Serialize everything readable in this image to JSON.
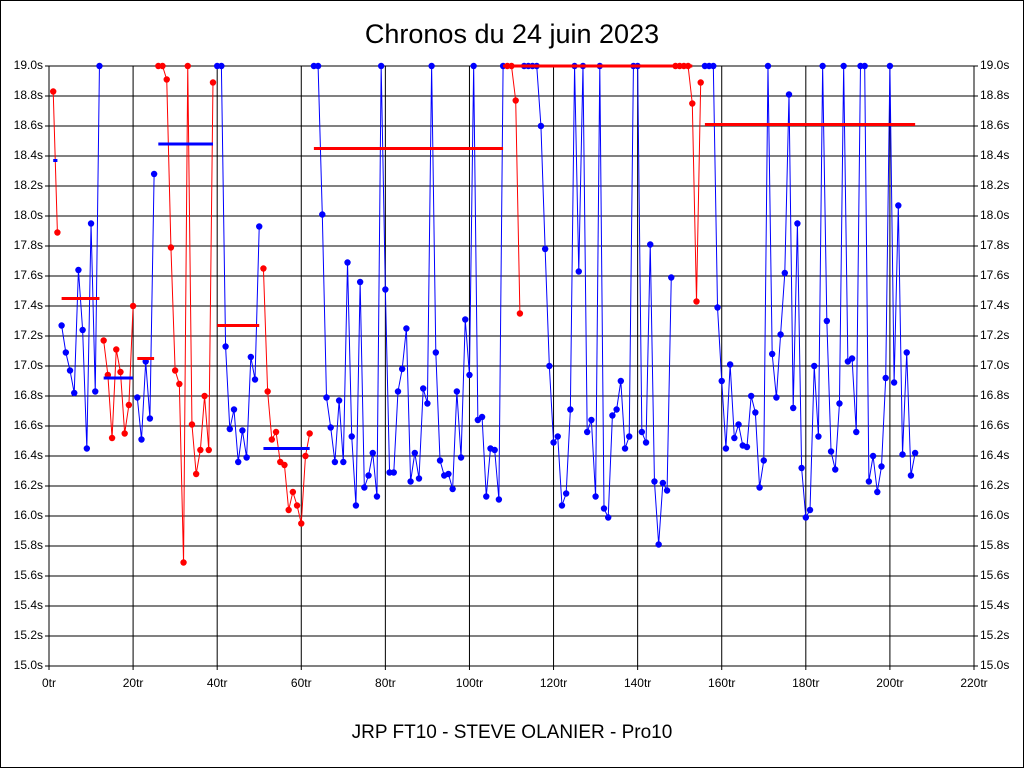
{
  "chart_data": {
    "type": "line",
    "title": "Chronos du 24 juin 2023",
    "subtitle": "JRP FT10 - STEVE OLANIER - Pro10",
    "xlim": [
      0,
      220
    ],
    "xticks": [
      {
        "value": 0,
        "label": "0tr"
      },
      {
        "value": 20,
        "label": "20tr"
      },
      {
        "value": 40,
        "label": "40tr"
      },
      {
        "value": 60,
        "label": "60tr"
      },
      {
        "value": 80,
        "label": "80tr"
      },
      {
        "value": 100,
        "label": "100tr"
      },
      {
        "value": 120,
        "label": "120tr"
      },
      {
        "value": 140,
        "label": "140tr"
      },
      {
        "value": 160,
        "label": "160tr"
      },
      {
        "value": 180,
        "label": "180tr"
      },
      {
        "value": 200,
        "label": "200tr"
      },
      {
        "value": 220,
        "label": "220tr"
      }
    ],
    "ylim": [
      15,
      19
    ],
    "yticks": [
      {
        "value": 15,
        "label": "15.0s"
      },
      {
        "value": 15.2,
        "label": "15.2s"
      },
      {
        "value": 15.4,
        "label": "15.4s"
      },
      {
        "value": 15.6,
        "label": "15.6s"
      },
      {
        "value": 15.8,
        "label": "15.8s"
      },
      {
        "value": 16,
        "label": "16.0s"
      },
      {
        "value": 16.2,
        "label": "16.2s"
      },
      {
        "value": 16.4,
        "label": "16.4s"
      },
      {
        "value": 16.6,
        "label": "16.6s"
      },
      {
        "value": 16.8,
        "label": "16.8s"
      },
      {
        "value": 17,
        "label": "17.0s"
      },
      {
        "value": 17.2,
        "label": "17.2s"
      },
      {
        "value": 17.4,
        "label": "17.4s"
      },
      {
        "value": 17.6,
        "label": "17.6s"
      },
      {
        "value": 17.8,
        "label": "17.8s"
      },
      {
        "value": 18,
        "label": "18.0s"
      },
      {
        "value": 18.2,
        "label": "18.2s"
      },
      {
        "value": 18.4,
        "label": "18.4s"
      },
      {
        "value": 18.6,
        "label": "18.6s"
      },
      {
        "value": 18.8,
        "label": "18.8s"
      },
      {
        "value": 19,
        "label": "19.0s"
      }
    ],
    "grid": true,
    "series": [
      {
        "color": "#ff0000",
        "x": [
          1,
          2
        ],
        "values": [
          18.83,
          17.89
        ]
      },
      {
        "color": "#0000ff",
        "x": [
          3,
          4,
          5,
          6,
          7,
          8,
          9,
          10,
          11,
          12
        ],
        "values": [
          17.27,
          17.09,
          16.97,
          16.82,
          17.64,
          17.24,
          16.45,
          17.95,
          16.83,
          19
        ]
      },
      {
        "color": "#ff0000",
        "x": [
          13,
          14,
          15,
          16,
          17,
          18,
          19,
          20
        ],
        "values": [
          17.17,
          16.94,
          16.52,
          17.11,
          16.96,
          16.55,
          16.74,
          17.4
        ]
      },
      {
        "color": "#0000ff",
        "x": [
          21,
          22,
          23,
          24,
          25
        ],
        "values": [
          16.79,
          16.51,
          17.03,
          16.65,
          18.28
        ]
      },
      {
        "color": "#ff0000",
        "x": [
          26,
          27,
          28,
          29,
          30,
          31,
          32,
          33,
          34,
          35,
          36,
          37,
          38,
          39
        ],
        "values": [
          19,
          19,
          18.91,
          17.79,
          16.97,
          16.88,
          15.69,
          19,
          16.61,
          16.28,
          16.44,
          16.8,
          16.44,
          18.89
        ]
      },
      {
        "color": "#0000ff",
        "x": [
          40,
          41,
          42,
          43,
          44,
          45,
          46,
          47,
          48,
          49,
          50
        ],
        "values": [
          19,
          19,
          17.13,
          16.58,
          16.71,
          16.36,
          16.57,
          16.39,
          17.06,
          16.91,
          17.93
        ]
      },
      {
        "color": "#ff0000",
        "x": [
          51,
          52,
          53,
          54,
          55,
          56,
          57,
          58,
          59,
          60,
          61,
          62
        ],
        "values": [
          17.65,
          16.83,
          16.51,
          16.56,
          16.36,
          16.34,
          16.04,
          16.16,
          16.07,
          15.95,
          16.4,
          16.55
        ]
      },
      {
        "color": "#0000ff",
        "x": [
          63,
          64,
          65,
          66,
          67,
          68,
          69,
          70,
          71,
          72,
          73,
          74,
          75,
          76,
          77,
          78,
          79,
          80,
          81,
          82,
          83,
          84,
          85,
          86,
          87,
          88,
          89,
          90,
          91,
          92,
          93,
          94,
          95,
          96,
          97,
          98,
          99,
          100,
          101,
          102,
          103,
          104,
          105,
          106,
          107,
          108
        ],
        "values": [
          19,
          19,
          18.01,
          16.79,
          16.59,
          16.36,
          16.77,
          16.36,
          17.69,
          16.53,
          16.07,
          17.56,
          16.19,
          16.27,
          16.42,
          16.13,
          19,
          17.51,
          16.29,
          16.29,
          16.83,
          16.98,
          17.25,
          16.23,
          16.42,
          16.25,
          16.85,
          16.75,
          19,
          17.09,
          16.37,
          16.27,
          16.28,
          16.18,
          16.83,
          16.39,
          17.31,
          16.94,
          19,
          16.64,
          16.66,
          16.13,
          16.45,
          16.44,
          16.11,
          19
        ]
      },
      {
        "color": "#ff0000",
        "x": [
          109,
          110,
          111,
          112
        ],
        "values": [
          19,
          19,
          18.77,
          17.35
        ]
      },
      {
        "color": "#0000ff",
        "x": [
          113,
          114,
          115,
          116,
          117,
          118,
          119,
          120,
          121,
          122,
          123,
          124,
          125,
          126,
          127,
          128,
          129,
          130,
          131,
          132,
          133,
          134,
          135,
          136,
          137,
          138,
          139,
          140,
          141,
          142,
          143,
          144,
          145,
          146,
          147,
          148
        ],
        "values": [
          19,
          19,
          19,
          19,
          18.6,
          17.78,
          17,
          16.49,
          16.53,
          16.07,
          16.15,
          16.71,
          19,
          17.63,
          19,
          16.56,
          16.64,
          16.13,
          19,
          16.05,
          15.99,
          16.67,
          16.71,
          16.9,
          16.45,
          16.53,
          19,
          19,
          16.56,
          16.49,
          17.81,
          16.23,
          15.81,
          16.22,
          16.17,
          17.59
        ]
      },
      {
        "color": "#ff0000",
        "x": [
          149,
          150,
          151,
          152,
          153,
          154,
          155
        ],
        "values": [
          19,
          19,
          19,
          19,
          18.75,
          17.43,
          18.89
        ]
      },
      {
        "color": "#0000ff",
        "x": [
          156,
          157,
          158,
          159,
          160,
          161,
          162,
          163,
          164,
          165,
          166,
          167,
          168,
          169,
          170,
          171,
          172,
          173,
          174,
          175,
          176,
          177,
          178,
          179,
          180,
          181,
          182,
          183,
          184,
          185,
          186,
          187,
          188,
          189,
          190,
          191,
          192,
          193,
          194,
          195,
          196,
          197,
          198,
          199,
          200,
          201,
          202,
          203,
          204,
          205,
          206
        ],
        "values": [
          19,
          19,
          19,
          17.39,
          16.9,
          16.45,
          17.01,
          16.52,
          16.61,
          16.47,
          16.46,
          16.8,
          16.69,
          16.19,
          16.37,
          19,
          17.08,
          16.79,
          17.21,
          17.62,
          18.81,
          16.72,
          17.95,
          16.32,
          15.99,
          16.04,
          17,
          16.53,
          19,
          17.3,
          16.43,
          16.31,
          16.75,
          19,
          17.03,
          17.05,
          16.56,
          19,
          19,
          16.23,
          16.4,
          16.16,
          16.33,
          16.92,
          19,
          16.89,
          18.07,
          16.41,
          17.09,
          16.27,
          16.42
        ]
      }
    ],
    "averages": [
      {
        "color": "#0000ff",
        "x": [
          1,
          2
        ],
        "value": 18.37
      },
      {
        "color": "#ff0000",
        "x": [
          3,
          12
        ],
        "value": 17.45
      },
      {
        "color": "#0000ff",
        "x": [
          13,
          20
        ],
        "value": 16.92
      },
      {
        "color": "#ff0000",
        "x": [
          21,
          25
        ],
        "value": 17.05
      },
      {
        "color": "#0000ff",
        "x": [
          26,
          39
        ],
        "value": 18.48
      },
      {
        "color": "#ff0000",
        "x": [
          40,
          50
        ],
        "value": 17.27
      },
      {
        "color": "#0000ff",
        "x": [
          51,
          62
        ],
        "value": 16.45
      },
      {
        "color": "#ff0000",
        "x": [
          63,
          108
        ],
        "value": 18.45
      },
      {
        "color": "#ff0000",
        "x": [
          108,
          153
        ],
        "value": 19
      },
      {
        "color": "#ff0000",
        "x": [
          156,
          206
        ],
        "value": 18.61
      }
    ]
  }
}
